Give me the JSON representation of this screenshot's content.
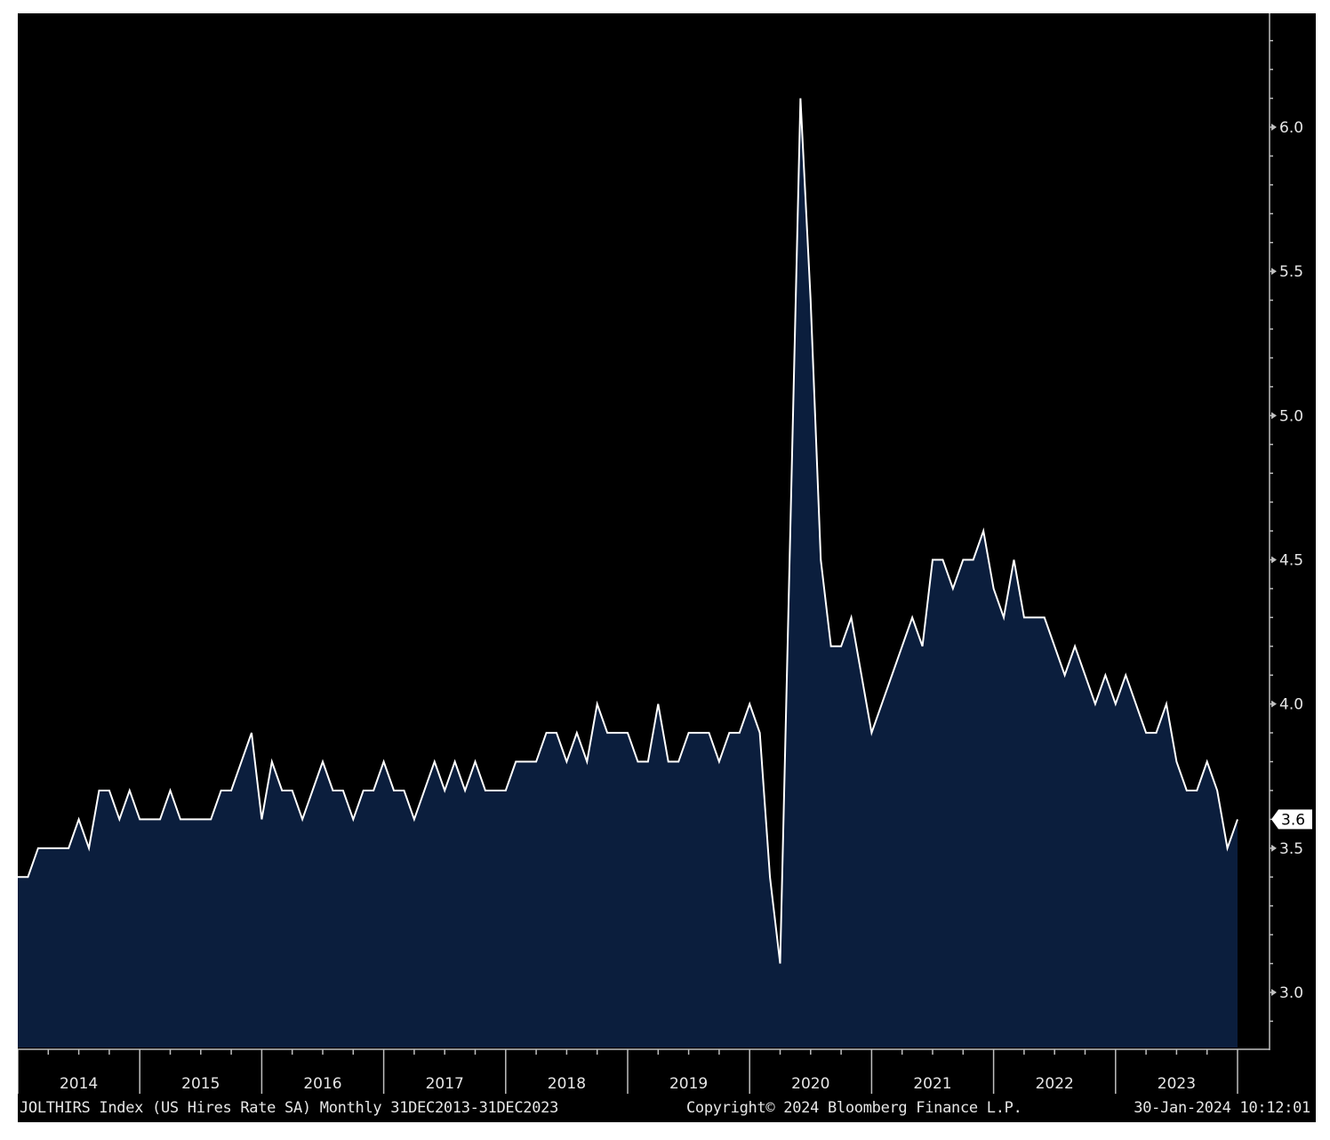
{
  "chart_data": {
    "type": "area",
    "title": "",
    "xlabel": "",
    "ylabel": "",
    "ylim": [
      2.8,
      6.35
    ],
    "yticks": [
      3.0,
      3.5,
      4.0,
      4.5,
      5.0,
      5.5,
      6.0
    ],
    "ytick_labels": [
      "3.0",
      "3.5",
      "4.0",
      "4.5",
      "5.0",
      "5.5",
      "6.0"
    ],
    "x_start": "2013-12",
    "x_end": "2023-12",
    "year_labels": [
      "2014",
      "2015",
      "2016",
      "2017",
      "2018",
      "2019",
      "2020",
      "2021",
      "2022",
      "2023"
    ],
    "series": [
      {
        "values": [
          3.4,
          3.4,
          3.5,
          3.5,
          3.5,
          3.5,
          3.6,
          3.5,
          3.7,
          3.7,
          3.6,
          3.7,
          3.6,
          3.6,
          3.6,
          3.7,
          3.6,
          3.6,
          3.6,
          3.6,
          3.7,
          3.7,
          3.8,
          3.9,
          3.6,
          3.8,
          3.7,
          3.7,
          3.6,
          3.7,
          3.8,
          3.7,
          3.7,
          3.6,
          3.7,
          3.7,
          3.8,
          3.7,
          3.7,
          3.6,
          3.7,
          3.8,
          3.7,
          3.8,
          3.7,
          3.8,
          3.7,
          3.7,
          3.7,
          3.8,
          3.8,
          3.8,
          3.9,
          3.9,
          3.8,
          3.9,
          3.8,
          4.0,
          3.9,
          3.9,
          3.9,
          3.8,
          3.8,
          4.0,
          3.8,
          3.8,
          3.9,
          3.9,
          3.9,
          3.8,
          3.9,
          3.9,
          4.0,
          3.9,
          3.4,
          3.1,
          4.6,
          6.1,
          5.4,
          4.5,
          4.2,
          4.2,
          4.3,
          4.1,
          3.9,
          4.0,
          4.1,
          4.2,
          4.3,
          4.2,
          4.5,
          4.5,
          4.4,
          4.5,
          4.5,
          4.6,
          4.4,
          4.3,
          4.5,
          4.3,
          4.3,
          4.3,
          4.2,
          4.1,
          4.2,
          4.1,
          4.0,
          4.1,
          4.0,
          4.1,
          4.0,
          3.9,
          3.9,
          4.0,
          3.8,
          3.7,
          3.7,
          3.8,
          3.7,
          3.5,
          3.6
        ]
      }
    ],
    "last_value_label": "3.6",
    "colors": {
      "background": "#000000",
      "line": "#ffffff",
      "fill": "#0b1e3d",
      "axis": "#bfbfbf",
      "text": "#e6e6e6",
      "badge_fill": "#ffffff",
      "badge_text": "#000000"
    }
  },
  "footer": {
    "left": "JOLTHIRS Index (US Hires Rate SA)  Monthly 31DEC2013-31DEC2023",
    "center": "Copyright© 2024 Bloomberg Finance L.P.",
    "right": "30-Jan-2024 10:12:01"
  }
}
